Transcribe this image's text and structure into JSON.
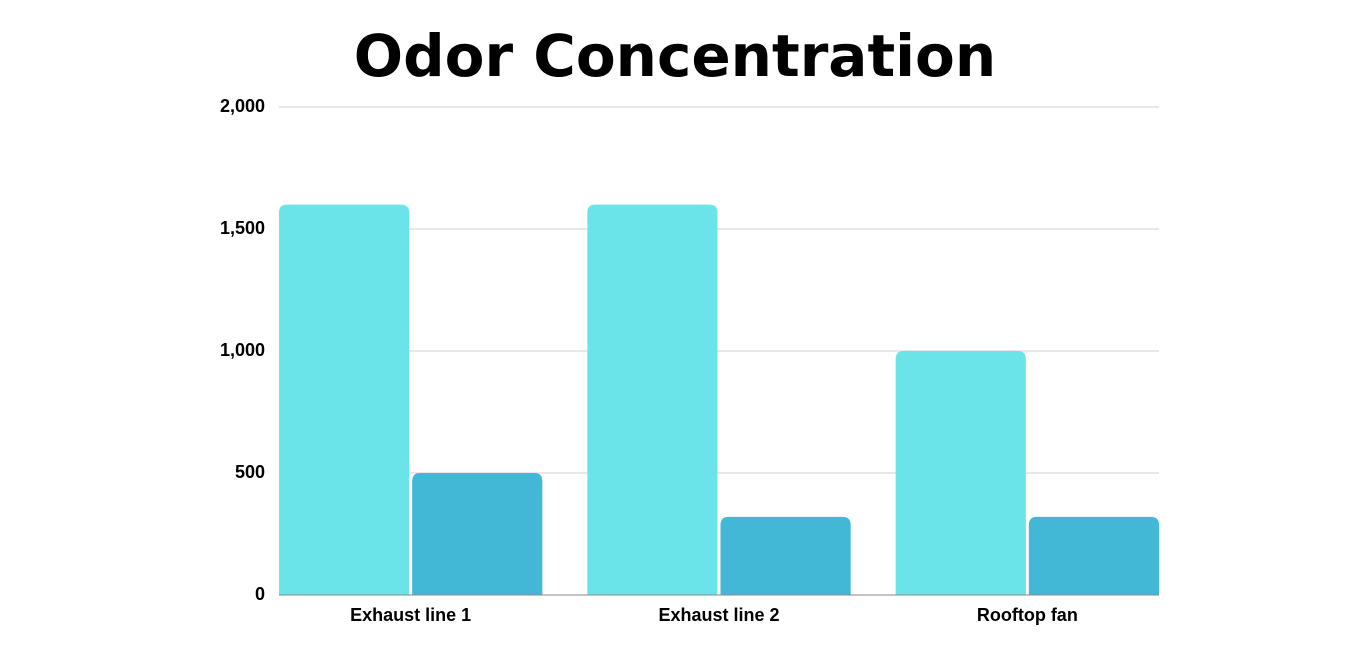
{
  "chart_data": {
    "type": "bar",
    "title": "Odor Concentration",
    "categories": [
      "Exhaust line 1",
      "Exhaust line 2",
      "Rooftop fan"
    ],
    "series": [
      {
        "color": "#6ae4e9",
        "values": [
          1600,
          1600,
          1000
        ]
      },
      {
        "color": "#42b7d6",
        "values": [
          500,
          320,
          320
        ]
      }
    ],
    "ylim": [
      0,
      2000
    ],
    "yticks": [
      0,
      500,
      {
        "value": 1000,
        "label": "1,000"
      },
      {
        "value": 1500,
        "label": "1,500"
      },
      {
        "value": 2000,
        "label": "2,000"
      }
    ],
    "grid": true
  }
}
